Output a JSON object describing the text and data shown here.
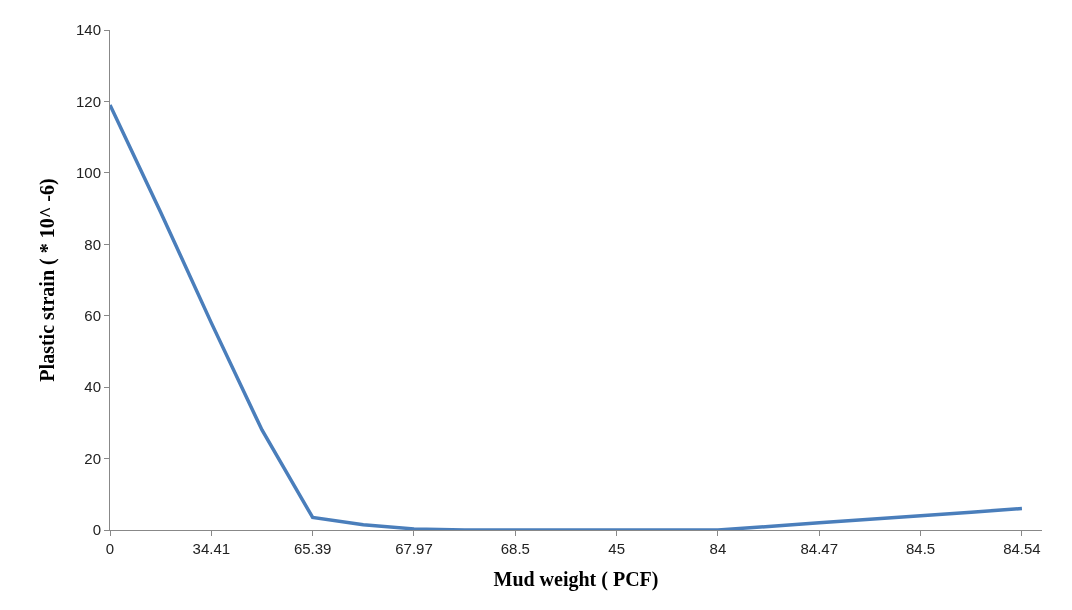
{
  "chart_data": {
    "type": "line",
    "xlabel": "Mud weight ( PCF)",
    "ylabel": "Plastic strain ( * 10^ -6)",
    "categories": [
      "0",
      null,
      "34.41",
      null,
      "65.39",
      null,
      "67.97",
      null,
      "68.5",
      null,
      "45",
      null,
      "84",
      null,
      "84.47",
      null,
      "84.5",
      null,
      "84.54"
    ],
    "series": [
      {
        "color": "#4a7ebb",
        "values": [
          119,
          89,
          58,
          28,
          3.5,
          1.5,
          0.3,
          0,
          0,
          0,
          0,
          0,
          0,
          1,
          2,
          3,
          4,
          5,
          6
        ]
      }
    ],
    "ylim": [
      0,
      140
    ],
    "yticks": [
      0,
      20,
      40,
      60,
      80,
      100,
      120,
      140
    ],
    "marker": "none",
    "line_style": "solid"
  }
}
